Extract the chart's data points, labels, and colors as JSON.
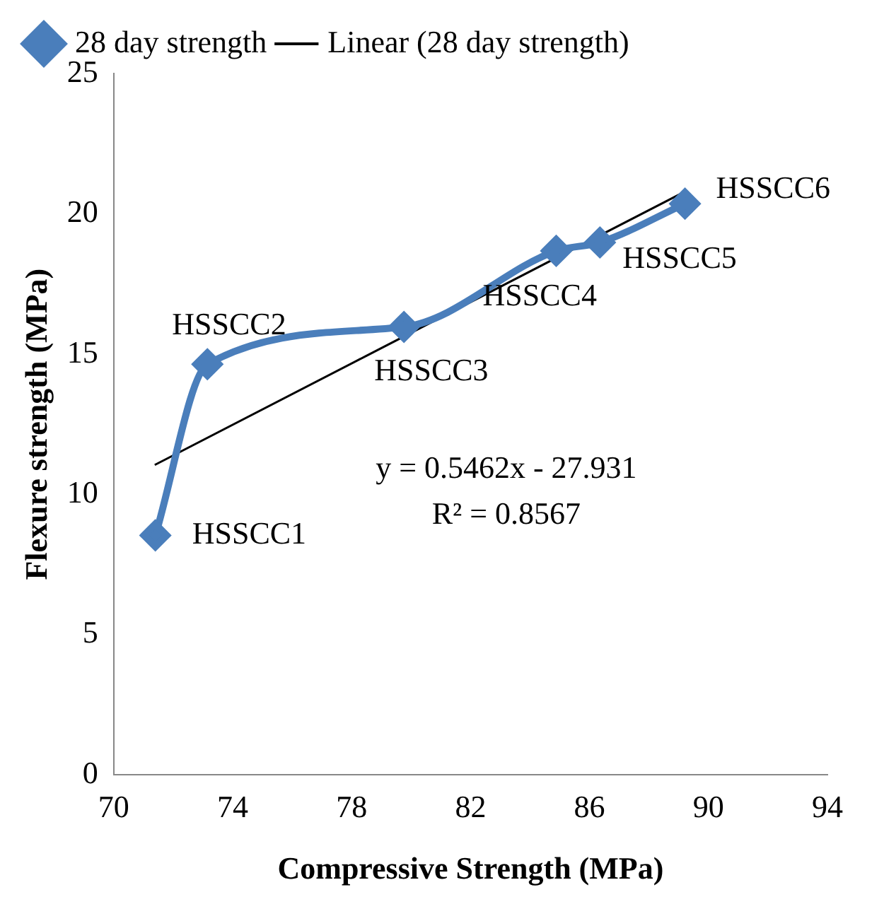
{
  "chart_data": {
    "type": "line",
    "xlabel": "Compressive Strength (MPa)",
    "ylabel": "Flexure strength (MPa)",
    "xlim": [
      70,
      94
    ],
    "xticks": [
      70,
      74,
      78,
      82,
      86,
      90,
      94
    ],
    "ylim": [
      0,
      25
    ],
    "yticks": [
      0,
      5,
      10,
      15,
      20,
      25
    ],
    "grid": false,
    "legend": "top",
    "marker": "diamond",
    "series": [
      {
        "name": "28 day strength",
        "color": "#4a7ebb",
        "x": [
          71.4,
          73.15,
          79.76,
          84.88,
          86.35,
          89.21
        ],
        "values": [
          8.54,
          14.64,
          15.97,
          18.68,
          18.98,
          20.36
        ]
      },
      {
        "name": "Linear (28 day strength)",
        "color": "#000000",
        "type": "line",
        "marker": "none",
        "x": [
          71.38,
          89.24
        ],
        "values": [
          11.05,
          20.81
        ]
      }
    ],
    "annotations": [
      {
        "text": "HSSCC1",
        "x": 71.4,
        "y": 8.54
      },
      {
        "text": "HSSCC2",
        "x": 73.15,
        "y": 14.64
      },
      {
        "text": "HSSCC3",
        "x": 79.76,
        "y": 15.97
      },
      {
        "text": "HSSCC4",
        "x": 84.88,
        "y": 18.68
      },
      {
        "text": "HSSCC5",
        "x": 86.35,
        "y": 18.98
      },
      {
        "text": "HSSCC6",
        "x": 89.21,
        "y": 20.36
      },
      "y = 0.5462x - 27.931",
      "R² = 0.8567"
    ]
  }
}
